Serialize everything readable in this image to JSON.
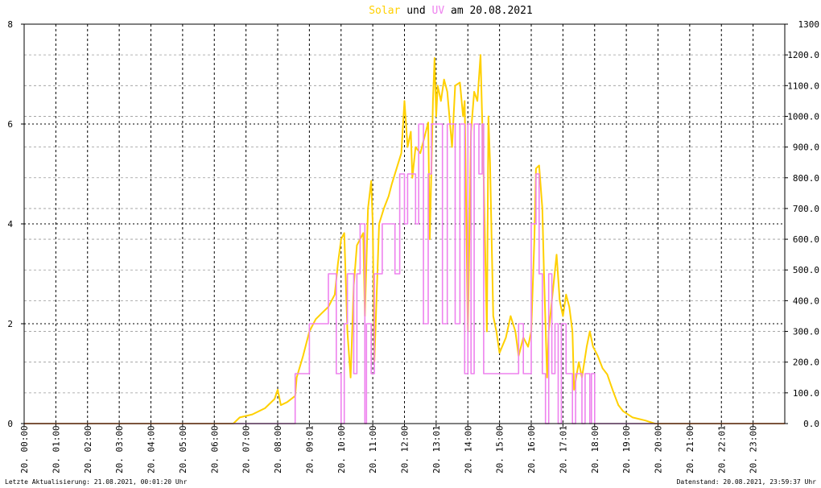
{
  "chart_data": {
    "type": "line",
    "title_parts": {
      "solar": "Solar",
      "und": " und ",
      "uv": "UV",
      "rest": " am 20.08.2021"
    },
    "colors": {
      "solar": "#ffd000",
      "uv": "#ee82ee",
      "grid": "#000000",
      "minor_grid": "#999999"
    },
    "left_axis": {
      "ylim": [
        0,
        8
      ],
      "ticks": [
        "0",
        "2",
        "4",
        "6",
        "8"
      ]
    },
    "right_axis": {
      "ylim": [
        0,
        1300
      ],
      "ticks": [
        "0.0",
        "100.0",
        "200.0",
        "300.0",
        "400.0",
        "500.0",
        "600.0",
        "700.0",
        "800.0",
        "900.0",
        "1000.0",
        "1100.0",
        "1200.0",
        "1300"
      ]
    },
    "x_ticks": [
      "20. 00:00",
      "20. 01:00",
      "20. 02:00",
      "20. 03:00",
      "20. 04:00",
      "20. 05:00",
      "20. 06:00",
      "20. 07:00",
      "20. 08:00",
      "20. 09:01",
      "20. 10:00",
      "20. 11:00",
      "20. 12:00",
      "20. 13:01",
      "20. 14:00",
      "20. 15:00",
      "20. 16:00",
      "20. 17:01",
      "20. 18:00",
      "20. 19:00",
      "20. 20:00",
      "20. 21:00",
      "20. 22:01",
      "20. 23:00"
    ],
    "x_range_hours": [
      0,
      24
    ],
    "series": [
      {
        "name": "Solar",
        "axis": "right",
        "points": [
          [
            0,
            0
          ],
          [
            6.6,
            0
          ],
          [
            6.8,
            20
          ],
          [
            7.2,
            30
          ],
          [
            7.6,
            50
          ],
          [
            7.9,
            80
          ],
          [
            8.0,
            110
          ],
          [
            8.1,
            60
          ],
          [
            8.3,
            70
          ],
          [
            8.55,
            90
          ],
          [
            8.6,
            150
          ],
          [
            8.8,
            220
          ],
          [
            9.0,
            300
          ],
          [
            9.2,
            340
          ],
          [
            9.4,
            360
          ],
          [
            9.6,
            380
          ],
          [
            9.8,
            420
          ],
          [
            9.9,
            520
          ],
          [
            10.0,
            600
          ],
          [
            10.1,
            620
          ],
          [
            10.2,
            300
          ],
          [
            10.3,
            150
          ],
          [
            10.4,
            450
          ],
          [
            10.5,
            580
          ],
          [
            10.7,
            620
          ],
          [
            10.75,
            350
          ],
          [
            10.85,
            700
          ],
          [
            10.95,
            790
          ],
          [
            11.0,
            650
          ],
          [
            11.05,
            200
          ],
          [
            11.2,
            650
          ],
          [
            11.35,
            700
          ],
          [
            11.5,
            740
          ],
          [
            11.6,
            780
          ],
          [
            11.75,
            830
          ],
          [
            11.9,
            880
          ],
          [
            12.0,
            1050
          ],
          [
            12.1,
            900
          ],
          [
            12.2,
            950
          ],
          [
            12.25,
            800
          ],
          [
            12.35,
            900
          ],
          [
            12.5,
            880
          ],
          [
            12.6,
            920
          ],
          [
            12.75,
            980
          ],
          [
            12.8,
            600
          ],
          [
            12.9,
            1050
          ],
          [
            12.95,
            1190
          ],
          [
            13.0,
            1000
          ],
          [
            13.05,
            1100
          ],
          [
            13.15,
            1050
          ],
          [
            13.25,
            1120
          ],
          [
            13.35,
            1080
          ],
          [
            13.5,
            900
          ],
          [
            13.6,
            1100
          ],
          [
            13.75,
            1110
          ],
          [
            13.85,
            1000
          ],
          [
            13.9,
            1050
          ],
          [
            14.0,
            300
          ],
          [
            14.1,
            950
          ],
          [
            14.2,
            1080
          ],
          [
            14.3,
            1050
          ],
          [
            14.4,
            1200
          ],
          [
            14.5,
            800
          ],
          [
            14.6,
            300
          ],
          [
            14.65,
            1000
          ],
          [
            14.7,
            850
          ],
          [
            14.75,
            600
          ],
          [
            14.8,
            350
          ],
          [
            14.9,
            300
          ],
          [
            15.0,
            230
          ],
          [
            15.2,
            280
          ],
          [
            15.35,
            350
          ],
          [
            15.5,
            300
          ],
          [
            15.6,
            220
          ],
          [
            15.75,
            280
          ],
          [
            15.9,
            250
          ],
          [
            16.0,
            300
          ],
          [
            16.1,
            600
          ],
          [
            16.15,
            830
          ],
          [
            16.25,
            840
          ],
          [
            16.35,
            700
          ],
          [
            16.4,
            500
          ],
          [
            16.5,
            150
          ],
          [
            16.55,
            300
          ],
          [
            16.7,
            450
          ],
          [
            16.8,
            550
          ],
          [
            16.9,
            400
          ],
          [
            17.0,
            350
          ],
          [
            17.1,
            420
          ],
          [
            17.2,
            380
          ],
          [
            17.3,
            300
          ],
          [
            17.35,
            110
          ],
          [
            17.5,
            200
          ],
          [
            17.6,
            150
          ],
          [
            17.75,
            250
          ],
          [
            17.85,
            300
          ],
          [
            17.95,
            250
          ],
          [
            18.1,
            220
          ],
          [
            18.25,
            180
          ],
          [
            18.4,
            160
          ],
          [
            18.5,
            130
          ],
          [
            18.6,
            100
          ],
          [
            18.75,
            60
          ],
          [
            18.9,
            40
          ],
          [
            19.2,
            20
          ],
          [
            19.6,
            10
          ],
          [
            19.9,
            0
          ],
          [
            24,
            0
          ]
        ]
      },
      {
        "name": "UV",
        "axis": "left",
        "points": [
          [
            0,
            0
          ],
          [
            8.55,
            0
          ],
          [
            8.55,
            1
          ],
          [
            9.0,
            1
          ],
          [
            9.0,
            2
          ],
          [
            9.6,
            2
          ],
          [
            9.6,
            3
          ],
          [
            9.85,
            3
          ],
          [
            9.85,
            1
          ],
          [
            10.0,
            1
          ],
          [
            10.0,
            0
          ],
          [
            10.1,
            0
          ],
          [
            10.1,
            2
          ],
          [
            10.2,
            2
          ],
          [
            10.2,
            3
          ],
          [
            10.4,
            3
          ],
          [
            10.4,
            1
          ],
          [
            10.5,
            1
          ],
          [
            10.5,
            3
          ],
          [
            10.6,
            3
          ],
          [
            10.6,
            4
          ],
          [
            10.75,
            4
          ],
          [
            10.75,
            0
          ],
          [
            10.8,
            0
          ],
          [
            10.8,
            2
          ],
          [
            10.95,
            2
          ],
          [
            10.95,
            1
          ],
          [
            11.05,
            1
          ],
          [
            11.05,
            3
          ],
          [
            11.3,
            3
          ],
          [
            11.3,
            4
          ],
          [
            11.7,
            4
          ],
          [
            11.7,
            3
          ],
          [
            11.85,
            3
          ],
          [
            11.85,
            5
          ],
          [
            12.0,
            5
          ],
          [
            12.0,
            4
          ],
          [
            12.1,
            4
          ],
          [
            12.1,
            5
          ],
          [
            12.35,
            5
          ],
          [
            12.35,
            4
          ],
          [
            12.45,
            4
          ],
          [
            12.45,
            6
          ],
          [
            12.6,
            6
          ],
          [
            12.6,
            2
          ],
          [
            12.75,
            2
          ],
          [
            12.75,
            5
          ],
          [
            12.85,
            5
          ],
          [
            12.85,
            6
          ],
          [
            13.2,
            6
          ],
          [
            13.2,
            2
          ],
          [
            13.35,
            2
          ],
          [
            13.35,
            6
          ],
          [
            13.6,
            6
          ],
          [
            13.6,
            2
          ],
          [
            13.75,
            2
          ],
          [
            13.75,
            6
          ],
          [
            13.9,
            6
          ],
          [
            13.9,
            1
          ],
          [
            14.0,
            1
          ],
          [
            14.0,
            6
          ],
          [
            14.1,
            6
          ],
          [
            14.1,
            1
          ],
          [
            14.2,
            1
          ],
          [
            14.2,
            6
          ],
          [
            14.35,
            6
          ],
          [
            14.35,
            5
          ],
          [
            14.45,
            5
          ],
          [
            14.45,
            6
          ],
          [
            14.5,
            6
          ],
          [
            14.5,
            1
          ],
          [
            15.6,
            1
          ],
          [
            15.6,
            2
          ],
          [
            15.75,
            2
          ],
          [
            15.75,
            1
          ],
          [
            16.0,
            1
          ],
          [
            16.0,
            4
          ],
          [
            16.15,
            4
          ],
          [
            16.15,
            5
          ],
          [
            16.25,
            5
          ],
          [
            16.25,
            3
          ],
          [
            16.35,
            3
          ],
          [
            16.35,
            1
          ],
          [
            16.45,
            1
          ],
          [
            16.45,
            0
          ],
          [
            16.55,
            0
          ],
          [
            16.55,
            3
          ],
          [
            16.65,
            3
          ],
          [
            16.65,
            1
          ],
          [
            16.75,
            1
          ],
          [
            16.75,
            2
          ],
          [
            16.85,
            2
          ],
          [
            16.85,
            0
          ],
          [
            16.95,
            0
          ],
          [
            16.95,
            2
          ],
          [
            17.1,
            2
          ],
          [
            17.1,
            1
          ],
          [
            17.3,
            1
          ],
          [
            17.3,
            0
          ],
          [
            17.4,
            0
          ],
          [
            17.4,
            1
          ],
          [
            17.6,
            1
          ],
          [
            17.6,
            0
          ],
          [
            17.7,
            0
          ],
          [
            17.7,
            1
          ],
          [
            17.85,
            1
          ],
          [
            17.85,
            0
          ],
          [
            17.9,
            0
          ],
          [
            17.9,
            1
          ],
          [
            18.0,
            1
          ],
          [
            18.0,
            0
          ],
          [
            24,
            0
          ]
        ]
      }
    ]
  },
  "footer": {
    "left": "Letzte Aktualisierung: 21.08.2021, 00:01:20 Uhr",
    "right": "Datenstand: 20.08.2021, 23:59:37 Uhr"
  }
}
